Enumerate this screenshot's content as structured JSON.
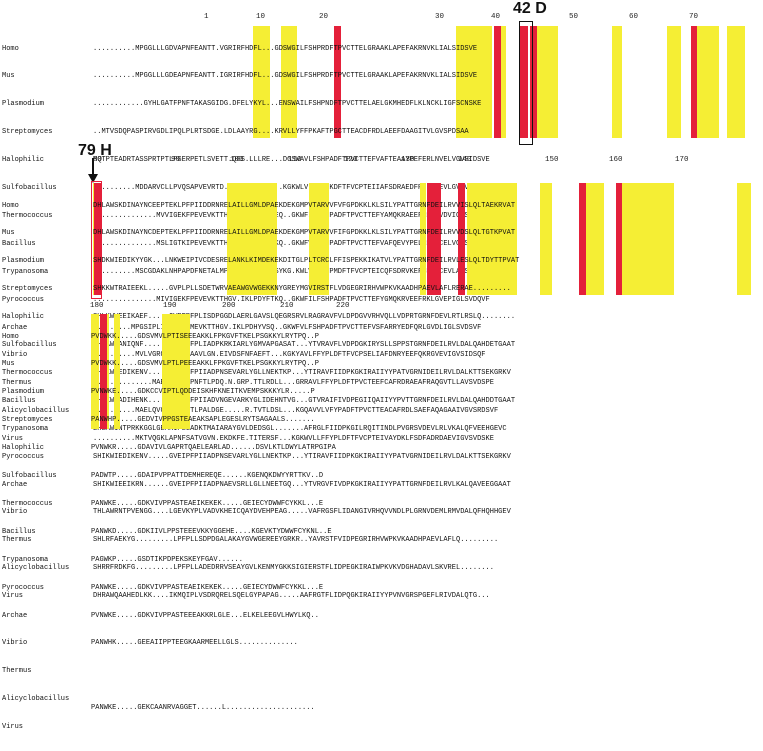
{
  "annotations": {
    "residue_42": "42 D",
    "residue_79": "79 H"
  },
  "species": [
    "Homo",
    "Mus",
    "Plasmodium",
    "Streptomyces",
    "Halophilic",
    "Sulfobacillus",
    "Thermococcus",
    "Bacillus",
    "Trypanosoma",
    "Pyrococcus",
    "Archae",
    "Vibrio",
    "Thermus",
    "Alicyclobacillus",
    "Virus"
  ],
  "block1": {
    "ruler": [
      "1",
      "10",
      "20",
      "30",
      "40",
      "50",
      "60",
      "70"
    ],
    "rows": [
      "..........MPGGLLLGDVAPNFEANTT.VGRIRFHDFL...GDSWGILFSHPRDFTPVCTTELGRAAKLAPEFAKRNVKLIALSIDSVE",
      "..........MPGGLLLGDEAPNFEANTT.IGRIRFHDFL...GDSWGILFSHPRDFTPVCTTELGRAAKLAPEFAKRNVKLIALSIDSVE",
      "............GYHLGATFPNFTAKASGIDG.DFELYKYL...ENSWAILFSHPNDFTPVCTTELAELGKMHEDFLKLNCKLIGFSCNSKE",
      "..MTVSDQPASPIRVGDLIPQLPLRTSDGE.LDLAAYRG....KRVLLYFFPKAFTPGCTTEACDFRDLAEEFDAAGITVLGVSPDSAA",
      "MQTPTEADRTASSPRTPTLPGERPETLSVETT.QGS.LLLRE...DGSWAVLFSHPADFTPVCTTEFVAFTEAAYPEFERLNVELVGVSIDSVE",
      "..........MDDARVCLLPVQSAPVEVRTD.PGR.TLRDL....KGKWLVLFFYPKDFTFVCPTEIIAFSDRAEDFRNLKAEVLGVSVDSTE",
      "...............MVVIGEKFPEVEVKTTHGV.IKLPDYFAEQ..GKWFILFSHPADFTPVCTTEFYAMQKRAEEFRKLGVDVIGLSVDQVF",
      "...............MSLIGTKIPEVEVKTTHGT.IKLPEHFAKQ..GKWFVLFSHPADFTPVCTTEFVAFQEVYPELRELNCELVGLSVDQVF",
      "..........MSCGDAKLNHPAPDFNETALMPNGT.FKKVALTSYKG.KWLVLFFYPMDFTFVCPTEICQFSDRVKEFSDIGCEVLACSMDSEY",
      "...............MIVIGEKFPEVEVKTTHGV.IKLPDYFTKQ..GKWFILFSHPADFTPVCTTEFYGMQKRVEEFRKLGVEPIGLSVDQVF",
      ".........MPGSIPLIGERFPEMEVKTTHGV.IKLPDHYVSQ..GKWFVLFSHPADFTPVCTTEFVSFARRYEDFQRLGVDLIGLSVDSVF",
      "..........MVLVGRQAPDFTAAAVLGN.EIVDSFNFAEFT...KGKYAVLFFYPLDFTFVCPSELIAFDNRYEEFQKRGVEVIGVSIDSQF",
      "..............MAELVGTLAPNFTLPDQ.N.GRP.TTLRDLL...GRRAVLFFYPLDFTPVCTEEFCAFRDRAEAFRAQGVTLLAVSVDSPE",
      "..........MAELQVGTDAPNFTLPALDGE.....R.TVTLDSL...KGQAVVLVFYPADFTPVCTTEACAFRDLSAEFAQAGAAIVGVSRDSVF",
      "..........MKTVQGKLAPNFSATVGVN.EKDKFE.TITERSF...KGKWVLLFFYPLDFTFVCPTEIVAYDKLFSDFADRDAEVIGVSVDSKE"
    ]
  },
  "block2": {
    "ruler": [
      "80",
      "90",
      "100",
      "110",
      "120",
      "130",
      "140",
      "150",
      "160",
      "170"
    ],
    "rows": [
      "DHLAWSKDINAYNCEEPTEKLPFPIIDDRNRELAILLGMLDPAEKDEKGMPVTARVVFVFGPDKKLKLSILYPATTGRNFDEILRVVISLQLTAEKRVAT",
      "DHLAWSKDINAYNCDEPTEKLPFPIIDDRNRELAILLGMLDPAEKDEKGMPVTARVVFIFGPDKKLKLSILYPATTGRNFDEILRVVDSLQLTGTKPVAT",
      "SHDKWIEDIKYYGK...LNKWEIPIVCDESRELANKLKIMDEKEKDITGLPLTCRCLFFISPEKKIKATVLYPATTGRNFDEILRVLESLQLTDYTTPVAT",
      "SHKKWTRAIEEKL.....GVPLPLLSDETWRVAEAWGVWGEKKNYGREYMGVIRSTFLVDGEGRIRHVWPKVKAADHPAEVLAFLRERAE.........",
      "SHLKWVEEIKAEF.....GVPFPFPLISDPGGDLAERLGAVSLQEGRSRVLRAGRAVFVLDPDGVVRHVQLLVDPRTGRNFDEVLRTLRSLQ........",
      "SHDAWQANIQNF.....GVQFPLFPLIADPKRKIARLYGMVAPGASAT...YTVRAVFLVDPDGKIRYSLLSPPSTGRNFDEILRVLDALQAHDETGAAT",
      "SHIKWIEDIKENV.....GVEIPFPIIADPNSEVARLYGLLNEKTKP...YTIRAVFIIDPKGKIRAIIYYPATVGRNIDEILRVLDALKTTSEKGRKV",
      "SHLKWVADIHENK.....GIEIPFPIIADVNGEVARKYGLIDEHNTVG...GTVRAIFIVDPEGIIQAIIYYPVTTGRNFDEILRVLDALQAHDDTGAAT",
      "SHLAWINTPRKKGGLGEMKIPLLADKTMAIARAYGVLDEDSGL.......AFRGLFIIDPKGILRQITINDLPVGRSVDEVLRLVKALQFVEEHGEVC",
      "SHIKWIEDIKENV.....GVEIPFPIIADPNSEVARLYGLLNEKTKP...YTIRAVFIIDPKGKIRAIIYYPATVGRNIDEILRVLDALKTTSEKGRKV",
      "SHIKWIEEIKRN......GVEIPFPIIADPNAEVSRLLGLLNEETGQ...YTVRGVFIVDPKGKIRAIIYYPATTGRNFDEILRVLKALQAVEEGGAAT",
      "THLAWRNTPVENGG....LGEVKYPLVADVKHEICQAYDVEHPEAG.....VAFRGSFLIDANGIVRHQVVNDLPLGRNVDEMLRMVDALQFHQHHGEV",
      "SHLRFAEKYG.........LPFPLLSDPDGALAKAYGVWGEREEYGRKR..YAVRSTFVIDPEGRIRHVWPKVKAADHPAEVLAFLQ.........",
      "SHRRFRDKFG.........LPFPLLADEDRRVSEAYGVLKENMYGKKSIGIERSTFLIDPEGKIRAIWPKVKVDGHADAVLSKVREL........",
      "DHRAWQAAHEDLKK....IKMQIPLVSDRQRELSQELGYPAPAG.....AAFRGTFLIDPQGKIRAIIYYPVNVGRSPGEFLRIVDALQTG..."
    ]
  },
  "block3": {
    "ruler": [
      "180",
      "190",
      "200",
      "210",
      "220"
    ],
    "rows": [
      "PVDWKK.....GDSVMVLPTISEEEAKKLFPKGVFTKELPSGKKYLRYTPQ..P",
      "PVDWKK.....GDSVMVLPTLPEEEAKKLFPKGVFTKELPSGKKYLRYTPQ..P",
      "PVNWKE.....GDKCCVIPTLQDDEISKHFKNEITKVEMPSKKKYLR.....P",
      "PANWHP.....GEDVIVPPGSTEAEAKSAPLEGESLRYTSAGAALS.......",
      "PVNWKR.....GDAVIVLGAPRTQAELEARLAD......DSVLKTLDWYLATRPGIPA",
      "PADWTP.....GDAIPVPPATTDEMHEREQE......KGENQKDWYYRTTKV..D",
      "PANWKE.....GDKVIVPPASTEAEIKEKEK.....GEIECYDWWFCYKKL...E",
      "PANWKD.....GDKIIVLPPSTEEEVKKYGGEHE....KGEVKTYDWWFCYKNL..E",
      "PAGWKP.....GSDTIKPDPEKSKEYFGAV......",
      "PANWKE.....GDKVIVPPASTEAEIKEKEK.....GEIECYDWWFCYKKL...E",
      "PVNWKE.....GDKVIVPPASTEEEAKKRLGLE...ELKELEEGVLHWYLKQ..",
      "PANWHK.....GEEAIIPPTEEGKAARMEELLGLS..............",
      "",
      "",
      "PANWKE.....GEKCAANRVAGGET......L....................."
    ]
  }
}
